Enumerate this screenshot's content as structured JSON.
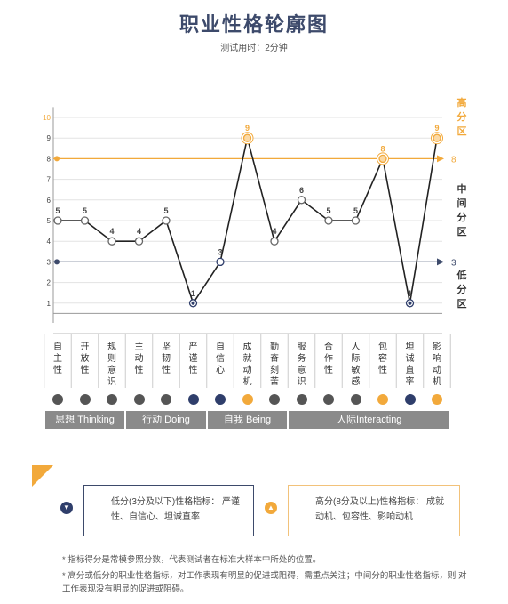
{
  "title": "职业性格轮廓图",
  "subtitle": "测试用时：2分钟",
  "chart_data": {
    "type": "line",
    "categories": [
      "自主性",
      "开放性",
      "规则意识",
      "主动性",
      "坚韧性",
      "严谨性",
      "自信心",
      "成就动机",
      "勤奋刻苦",
      "服务意识",
      "合作性",
      "人际敏感",
      "包容性",
      "坦诚直率",
      "影响动机"
    ],
    "values": [
      5,
      5,
      4,
      4,
      5,
      1,
      3,
      9,
      4,
      6,
      5,
      5,
      8,
      1,
      9
    ],
    "ylim": [
      0,
      10
    ],
    "yticks": [
      "1",
      "2",
      "3",
      "4",
      "5",
      "6",
      "7",
      "8",
      "9",
      "10"
    ],
    "threshold_high": 8,
    "threshold_low": 3,
    "threshold_high_label": "8",
    "threshold_low_label": "3",
    "zones": {
      "high": "高分区",
      "mid": "中间分区",
      "low": "低分区"
    },
    "category_colors": [
      "#555555",
      "#555555",
      "#555555",
      "#555555",
      "#555555",
      "#2f3e6b",
      "#2f3e6b",
      "#f2a93b",
      "#555555",
      "#555555",
      "#555555",
      "#555555",
      "#f2a93b",
      "#2f3e6b",
      "#f2a93b"
    ],
    "highlight_color": "#f2a93b",
    "line_color": "#222222",
    "low_color": "#3d4a6b"
  },
  "groups": [
    {
      "label": "思想 Thinking",
      "start": 0,
      "count": 3
    },
    {
      "label": "行动 Doing",
      "start": 3,
      "count": 3
    },
    {
      "label": "自我 Being",
      "start": 6,
      "count": 3
    },
    {
      "label": "人际Interacting",
      "start": 9,
      "count": 6
    }
  ],
  "legend_boxes": {
    "low_icon": "down-arrow-icon",
    "low_text": "低分(3分及以下)性格指标： 严谨性、自信心、坦诚直率",
    "high_icon": "up-arrow-icon",
    "high_text": "高分(8分及以上)性格指标： 成就动机、包容性、影响动机"
  },
  "notes": {
    "note1": "* 指标得分是常模参照分数，代表测试者在标准大样本中所处的位置。",
    "note2": "* 高分或低分的职业性格指标，对工作表现有明显的促进或阻碍，需重点关注；中间分的职业性格指标，则 对工作表现没有明显的促进或阻碍。"
  }
}
